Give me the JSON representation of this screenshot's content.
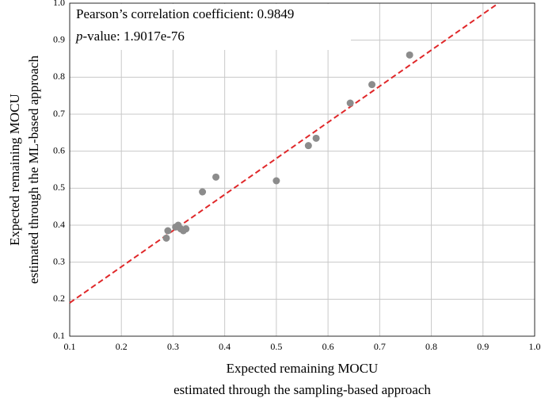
{
  "chart_data": {
    "type": "scatter",
    "xlabel": [
      "Expected remaining MOCU",
      "estimated through the sampling-based approach"
    ],
    "ylabel": [
      "Expected remaining MOCU",
      "estimated through the ML-based approach"
    ],
    "annotations": [
      {
        "text": "Pearson’s correlation coefficient: 0.9849"
      },
      {
        "italic": "p",
        "text": "-value: 1.9017e-76"
      }
    ],
    "x": [
      0.287,
      0.29,
      0.305,
      0.31,
      0.315,
      0.32,
      0.325,
      0.357,
      0.383,
      0.5,
      0.562,
      0.577,
      0.643,
      0.685,
      0.758
    ],
    "values": [
      0.365,
      0.385,
      0.395,
      0.4,
      0.39,
      0.385,
      0.39,
      0.49,
      0.53,
      0.52,
      0.615,
      0.635,
      0.73,
      0.78,
      0.86
    ],
    "color": "#8c8c8c",
    "fit_line": {
      "x": [
        0.1,
        0.93
      ],
      "y": [
        0.19,
        1.0
      ],
      "color": "#e0282a"
    },
    "xlim": [
      0.1,
      1.0
    ],
    "ylim": [
      0.1,
      1.0
    ],
    "xticks": [
      0.1,
      0.2,
      0.3,
      0.4,
      0.5,
      0.6,
      0.7,
      0.8,
      0.9,
      {
        "value": 1.0,
        "label": "1.0"
      }
    ],
    "yticks": [
      0.1,
      0.2,
      0.3,
      0.4,
      0.5,
      0.6,
      0.7,
      0.8,
      0.9,
      {
        "value": 1.0,
        "label": "1.0"
      }
    ],
    "grid": true
  }
}
